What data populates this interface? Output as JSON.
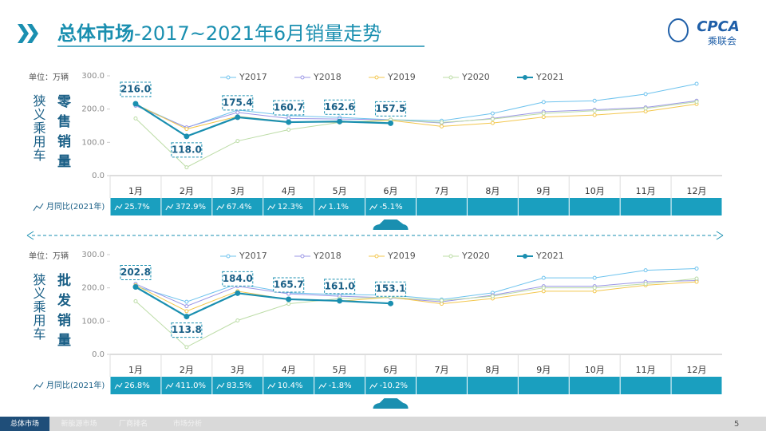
{
  "header": {
    "title_main": "总体市场",
    "title_rest": "-2017~2021年6月销量走势",
    "logo": "CPCA",
    "logo_sub": "乘联会"
  },
  "page_number": "5",
  "footer_tabs": [
    "总体市场",
    "新能源市场",
    "厂商排名",
    "市场分析"
  ],
  "chart_data": [
    {
      "type": "line",
      "side_label": "狭义乘用车",
      "title": "零售销量",
      "unit": "单位：万辆",
      "categories": [
        "1月",
        "2月",
        "3月",
        "4月",
        "5月",
        "6月",
        "7月",
        "8月",
        "9月",
        "10月",
        "11月",
        "12月"
      ],
      "ylim": [
        0,
        300
      ],
      "yticks": [
        {
          "value": 0,
          "label": "0.0"
        },
        {
          "value": 100,
          "label": "100.0"
        },
        {
          "value": 200,
          "label": "200.0"
        },
        {
          "value": 300,
          "label": "300.0"
        }
      ],
      "series": [
        {
          "name": "Y2017",
          "color": "#6ec3ee",
          "values": [
            214,
            144,
            197,
            180,
            175,
            168,
            165,
            187,
            221,
            225,
            245,
            276
          ]
        },
        {
          "name": "Y2018",
          "color": "#9b97e6",
          "values": [
            210,
            145,
            190,
            172,
            170,
            168,
            158,
            172,
            192,
            198,
            205,
            225
          ]
        },
        {
          "name": "Y2019",
          "color": "#f3c74e",
          "values": [
            215,
            140,
            178,
            162,
            160,
            166,
            148,
            158,
            176,
            182,
            193,
            215
          ]
        },
        {
          "name": "Y2020",
          "color": "#bcdca6",
          "values": [
            172,
            25,
            104,
            138,
            160,
            168,
            160,
            170,
            187,
            195,
            202,
            222
          ]
        },
        {
          "name": "Y2021",
          "color": "#1a8fb0",
          "values": [
            216.0,
            118.0,
            175.4,
            160.7,
            162.6,
            157.5,
            null,
            null,
            null,
            null,
            null,
            null
          ],
          "value_labels": [
            "216.0",
            "118.0",
            "175.4",
            "160.7",
            "162.6",
            "157.5",
            null,
            null,
            null,
            null,
            null,
            null
          ]
        }
      ],
      "mom_label": "月同比(2021年)",
      "mom": [
        "25.7%",
        "372.9%",
        "67.4%",
        "12.3%",
        "1.1%",
        "-5.1%"
      ]
    },
    {
      "type": "line",
      "side_label": "狭义乘用车",
      "title": "批发销量",
      "unit": "单位：万辆",
      "categories": [
        "1月",
        "2月",
        "3月",
        "4月",
        "5月",
        "6月",
        "7月",
        "8月",
        "9月",
        "10月",
        "11月",
        "12月"
      ],
      "ylim": [
        0,
        300
      ],
      "yticks": [
        {
          "value": 0,
          "label": "0.0"
        },
        {
          "value": 100,
          "label": "100.0"
        },
        {
          "value": 200,
          "label": "200.0"
        },
        {
          "value": 300,
          "label": "300.0"
        }
      ],
      "series": [
        {
          "name": "Y2017",
          "color": "#6ec3ee",
          "values": [
            205,
            158,
            212,
            185,
            180,
            178,
            165,
            185,
            230,
            230,
            253,
            258
          ]
        },
        {
          "name": "Y2018",
          "color": "#9b97e6",
          "values": [
            212,
            145,
            205,
            182,
            175,
            170,
            158,
            178,
            205,
            205,
            218,
            222
          ]
        },
        {
          "name": "Y2019",
          "color": "#f3c74e",
          "values": [
            208,
            130,
            190,
            165,
            160,
            172,
            152,
            168,
            190,
            190,
            208,
            218
          ]
        },
        {
          "name": "Y2020",
          "color": "#bcdca6",
          "values": [
            160,
            22,
            102,
            152,
            168,
            172,
            162,
            175,
            200,
            200,
            212,
            228
          ]
        },
        {
          "name": "Y2021",
          "color": "#1a8fb0",
          "values": [
            202.8,
            113.8,
            184.0,
            165.7,
            161.0,
            153.1,
            null,
            null,
            null,
            null,
            null,
            null
          ],
          "value_labels": [
            "202.8",
            "113.8",
            "184.0",
            "165.7",
            "161.0",
            "153.1",
            null,
            null,
            null,
            null,
            null,
            null
          ]
        }
      ],
      "mom_label": "月同比(2021年)",
      "mom": [
        "26.8%",
        "411.0%",
        "83.5%",
        "10.4%",
        "-1.8%",
        "-10.2%"
      ]
    }
  ]
}
